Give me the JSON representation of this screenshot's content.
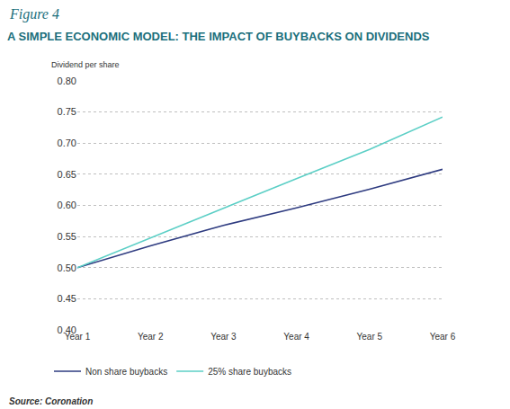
{
  "chart_data": {
    "type": "line",
    "figure_label": "Figure 4",
    "title": "A SIMPLE ECONOMIC MODEL: THE IMPACT OF BUYBACKS ON DIVIDENDS",
    "y_label": "Dividend per share",
    "source": "Source: Coronation",
    "categories": [
      "Year 1",
      "Year 2",
      "Year 3",
      "Year 4",
      "Year 5",
      "Year 6"
    ],
    "series": [
      {
        "name": "Non share buybacks",
        "color": "#2e3b80",
        "values": [
          0.5,
          0.535,
          0.568,
          0.596,
          0.626,
          0.658
        ]
      },
      {
        "name": "25% share buybacks",
        "color": "#5ccfc6",
        "values": [
          0.5,
          0.548,
          0.595,
          0.643,
          0.69,
          0.742
        ]
      }
    ],
    "ylim": [
      0.4,
      0.8
    ],
    "yticks": [
      {
        "value": 0.4,
        "label": "0.40"
      },
      {
        "value": 0.45,
        "label": "0.45"
      },
      {
        "value": 0.5,
        "label": "0.50"
      },
      {
        "value": 0.55,
        "label": "0.55"
      },
      {
        "value": 0.6,
        "label": "0.60"
      },
      {
        "value": 0.65,
        "label": "0.65"
      },
      {
        "value": 0.7,
        "label": "0.70"
      },
      {
        "value": 0.75,
        "label": "0.75"
      },
      {
        "value": 0.8,
        "label": "0.80"
      }
    ],
    "grid": true,
    "legend": "bottom left"
  }
}
